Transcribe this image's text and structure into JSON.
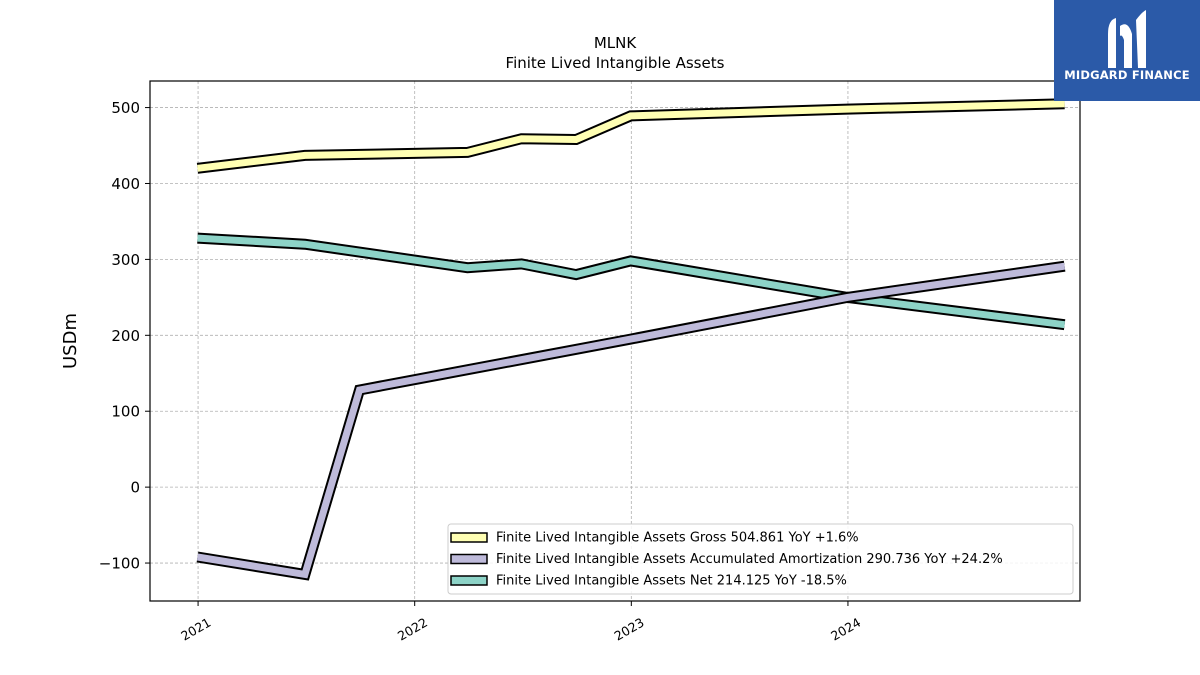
{
  "chart_data": {
    "type": "line",
    "title": "MLNK",
    "subtitle": "Finite Lived Intangible Assets",
    "ylabel": "USDm",
    "xlabel": "",
    "ylim": [
      -150,
      535
    ],
    "yticks": [
      -100,
      0,
      100,
      200,
      300,
      400,
      500
    ],
    "ytick_labels": [
      "−100",
      "0",
      "100",
      "200",
      "300",
      "400",
      "500"
    ],
    "xlim": [
      "2020-10-12",
      "2025-01-26"
    ],
    "xticks": [
      "2021-01-01",
      "2022-01-01",
      "2023-01-01",
      "2024-01-01"
    ],
    "xtick_labels": [
      "2021",
      "2022",
      "2023",
      "2024"
    ],
    "grid": true,
    "legend_position": "lower-right",
    "series": [
      {
        "name": "Finite Lived Intangible Assets Gross",
        "legend_label": "Finite Lived Intangible Assets Gross  504.861 YoY +1.6%",
        "color": "#ffffb3",
        "x": [
          "2020-12-31",
          "2021-06-30",
          "2022-03-31",
          "2022-06-30",
          "2022-09-30",
          "2022-12-31",
          "2023-12-31",
          "2024-12-31"
        ],
        "values": [
          420,
          437,
          441,
          459,
          458,
          489,
          498,
          505
        ]
      },
      {
        "name": "Finite Lived Intangible Assets Accumulated Amortization",
        "legend_label": "Finite Lived Intangible Assets Accumulated Amortization  290.736 YoY +24.2%",
        "color": "#bebada",
        "x": [
          "2020-12-31",
          "2021-06-30",
          "2021-09-30",
          "2022-12-31",
          "2023-12-31",
          "2024-12-31"
        ],
        "values": [
          -92,
          -115,
          128,
          195,
          250,
          291
        ]
      },
      {
        "name": "Finite Lived Intangible Assets Net",
        "legend_label": "Finite Lived Intangible Assets Net  214.125 YoY -18.5%",
        "color": "#8dd3c7",
        "x": [
          "2020-12-31",
          "2021-06-30",
          "2022-03-31",
          "2022-06-30",
          "2022-09-30",
          "2022-12-31",
          "2023-12-31",
          "2024-12-31"
        ],
        "values": [
          328,
          320,
          289,
          294,
          280,
          298,
          250,
          214
        ]
      }
    ]
  },
  "logo": {
    "text": "MIDGARD FINANCE",
    "color": "#2b5aa8"
  }
}
